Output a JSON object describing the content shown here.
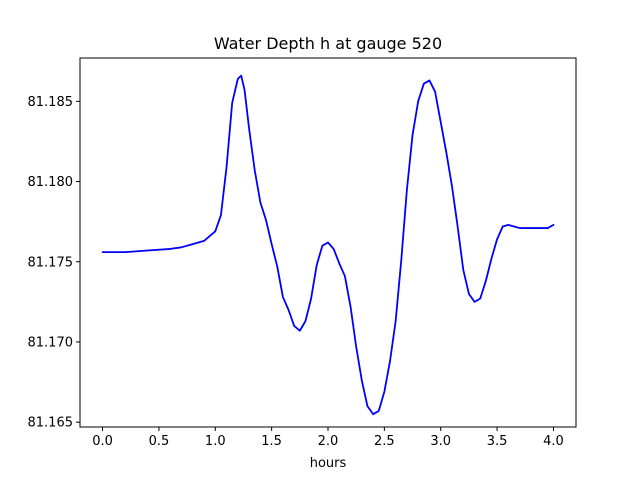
{
  "chart_data": {
    "type": "line",
    "title": "Water Depth h at gauge 520",
    "xlabel": "hours",
    "ylabel": "",
    "xlim": [
      -0.2,
      4.2
    ],
    "ylim": [
      81.1647,
      81.1877
    ],
    "xticks": [
      0.0,
      0.5,
      1.0,
      1.5,
      2.0,
      2.5,
      3.0,
      3.5,
      4.0
    ],
    "xtick_labels": [
      "0.0",
      "0.5",
      "1.0",
      "1.5",
      "2.0",
      "2.5",
      "3.0",
      "3.5",
      "4.0"
    ],
    "yticks": [
      81.165,
      81.17,
      81.175,
      81.18,
      81.185
    ],
    "ytick_labels": [
      "81.165",
      "81.170",
      "81.175",
      "81.180",
      "81.185"
    ],
    "grid": false,
    "series": [
      {
        "color": "#0000ff",
        "x": [
          0.0,
          0.2,
          0.4,
          0.6,
          0.7,
          0.8,
          0.9,
          1.0,
          1.05,
          1.1,
          1.15,
          1.2,
          1.23,
          1.26,
          1.3,
          1.35,
          1.4,
          1.45,
          1.5,
          1.55,
          1.6,
          1.65,
          1.7,
          1.75,
          1.8,
          1.85,
          1.9,
          1.95,
          2.0,
          2.05,
          2.1,
          2.15,
          2.2,
          2.25,
          2.3,
          2.35,
          2.4,
          2.45,
          2.5,
          2.55,
          2.6,
          2.65,
          2.7,
          2.75,
          2.8,
          2.85,
          2.9,
          2.95,
          3.0,
          3.05,
          3.1,
          3.15,
          3.2,
          3.25,
          3.3,
          3.35,
          3.4,
          3.45,
          3.5,
          3.55,
          3.6,
          3.65,
          3.7,
          3.75,
          3.8,
          3.85,
          3.9,
          3.95,
          4.0
        ],
        "y": [
          81.1756,
          81.1756,
          81.1757,
          81.1758,
          81.1759,
          81.1761,
          81.1763,
          81.1769,
          81.1779,
          81.1809,
          81.1849,
          81.1864,
          81.1866,
          81.1857,
          81.1833,
          81.1807,
          81.1787,
          81.1776,
          81.1761,
          81.1747,
          81.1728,
          81.172,
          81.171,
          81.1707,
          81.1713,
          81.1727,
          81.1748,
          81.176,
          81.1762,
          81.1758,
          81.1749,
          81.1741,
          81.1722,
          81.1697,
          81.1676,
          81.166,
          81.1655,
          81.1657,
          81.1669,
          81.1688,
          81.1713,
          81.1751,
          81.1795,
          81.1829,
          81.185,
          81.1861,
          81.1863,
          81.1856,
          81.1837,
          81.1818,
          81.1797,
          81.1772,
          81.1745,
          81.173,
          81.1725,
          81.1727,
          81.1738,
          81.1752,
          81.1764,
          81.1772,
          81.1773,
          81.1772,
          81.1771,
          81.1771,
          81.1771,
          81.1771,
          81.1771,
          81.1771,
          81.1773
        ]
      }
    ]
  }
}
